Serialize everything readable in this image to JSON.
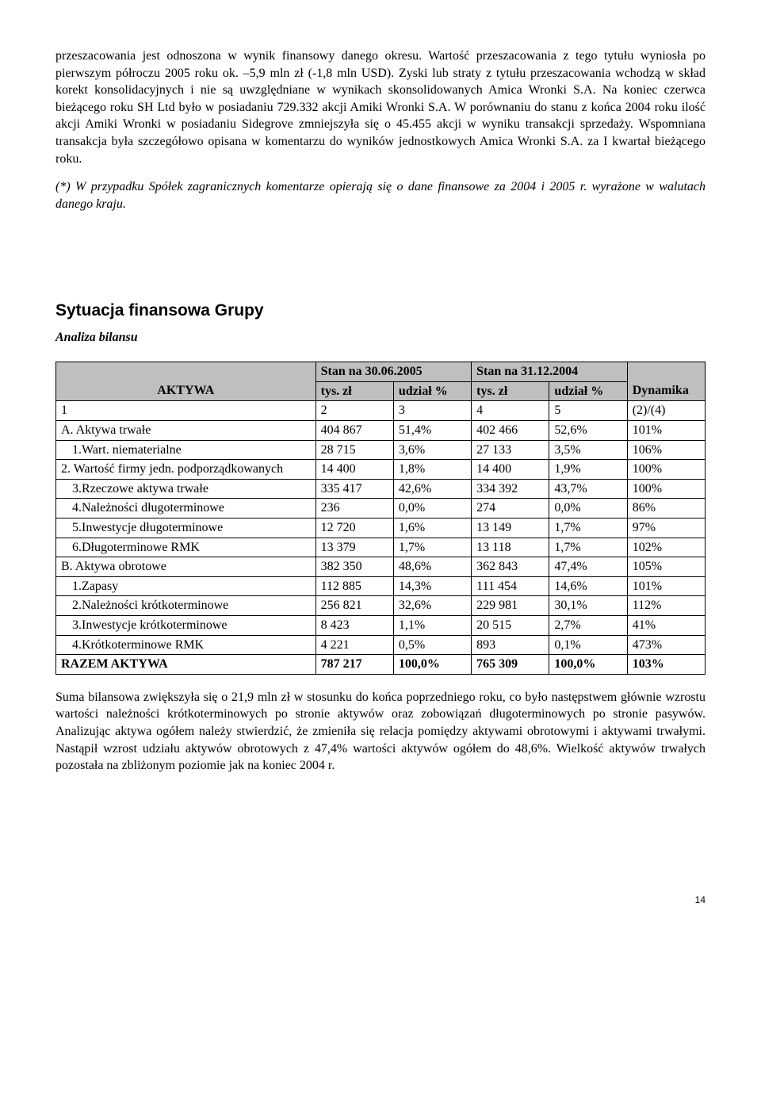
{
  "paragraphs": {
    "p1": "przeszacowania jest odnoszona w wynik finansowy danego okresu. Wartość przeszacowania z tego tytułu wyniosła po pierwszym półroczu 2005 roku ok. –5,9 mln zł (-1,8 mln USD). Zyski lub straty z tytułu przeszacowania wchodzą w skład korekt konsolidacyjnych i nie są uwzględniane w wynikach skonsolidowanych Amica Wronki S.A. Na koniec czerwca bieżącego roku SH Ltd było w posiadaniu 729.332 akcji Amiki Wronki S.A. W porównaniu do stanu z końca 2004 roku ilość akcji Amiki Wronki w posiadaniu Sidegrove zmniejszyła się o 45.455 akcji w wyniku transakcji sprzedaży. Wspomniana transakcja była szczegółowo opisana w komentarzu do wyników jednostkowych Amica Wronki S.A. za I kwartał bieżącego roku.",
    "p2": "(*) W przypadku Spółek zagranicznych komentarze opierają się o dane finansowe za 2004 i 2005 r. wyrażone w walutach danego kraju.",
    "p3": "Suma bilansowa zwiększyła się o  21,9 mln zł w stosunku do końca poprzedniego roku, co było następstwem głównie wzrostu wartości należności krótkoterminowych po stronie aktywów oraz zobowiązań długoterminowych po stronie pasywów. Analizując aktywa ogółem należy stwierdzić, że zmieniła się relacja pomiędzy aktywami obrotowymi i aktywami trwałymi. Nastąpił wzrost udziału aktywów obrotowych z 47,4% wartości aktywów ogółem do 48,6%. Wielkość aktywów trwałych pozostała na zbliżonym poziomie jak na koniec 2004 r."
  },
  "section_title": "Sytuacja finansowa Grupy",
  "subsection_title": "Analiza bilansu",
  "table": {
    "header_top": {
      "stan1": "Stan na 30.06.2005",
      "stan2": "Stan na 31.12.2004"
    },
    "header_cols": {
      "aktywa": "AKTYWA",
      "tys1": "tys. zł",
      "udz1": "udział %",
      "tys2": "tys. zł",
      "udz2": "udział %",
      "dyn": "Dynamika"
    },
    "numrow": {
      "c1": "1",
      "c2": "2",
      "c3": "3",
      "c4": "4",
      "c5": "5",
      "c6": "(2)/(4)"
    },
    "rows": [
      {
        "label": "A. Aktywa trwałe",
        "v1": "404 867",
        "v2": "51,4%",
        "v3": "402 466",
        "v4": "52,6%",
        "v5": "101%",
        "indent": false,
        "bold": false
      },
      {
        "label": "   1.Wart. niematerialne",
        "v1": "28 715",
        "v2": "3,6%",
        "v3": "27 133",
        "v4": "3,5%",
        "v5": "106%",
        "indent": true,
        "bold": false
      },
      {
        "label": "   2. Wartość firmy jedn. podporządkowanych",
        "v1": "14 400",
        "v2": "1,8%",
        "v3": "14 400",
        "v4": "1,9%",
        "v5": "100%",
        "indent": false,
        "bold": false
      },
      {
        "label": "   3.Rzeczowe aktywa trwałe",
        "v1": "335 417",
        "v2": "42,6%",
        "v3": "334 392",
        "v4": "43,7%",
        "v5": "100%",
        "indent": true,
        "bold": false
      },
      {
        "label": "   4.Należności długoterminowe",
        "v1": "236",
        "v2": "0,0%",
        "v3": "274",
        "v4": "0,0%",
        "v5": "86%",
        "indent": true,
        "bold": false
      },
      {
        "label": "   5.Inwestycje długoterminowe",
        "v1": "12 720",
        "v2": "1,6%",
        "v3": "13 149",
        "v4": "1,7%",
        "v5": "97%",
        "indent": true,
        "bold": false
      },
      {
        "label": "   6.Długoterminowe RMK",
        "v1": "13 379",
        "v2": "1,7%",
        "v3": "13 118",
        "v4": "1,7%",
        "v5": "102%",
        "indent": true,
        "bold": false
      },
      {
        "label": "B. Aktywa obrotowe",
        "v1": "382 350",
        "v2": "48,6%",
        "v3": "362 843",
        "v4": "47,4%",
        "v5": "105%",
        "indent": false,
        "bold": false
      },
      {
        "label": "   1.Zapasy",
        "v1": "112 885",
        "v2": "14,3%",
        "v3": "111 454",
        "v4": "14,6%",
        "v5": "101%",
        "indent": true,
        "bold": false
      },
      {
        "label": "   2.Należności krótkoterminowe",
        "v1": "256 821",
        "v2": "32,6%",
        "v3": "229 981",
        "v4": "30,1%",
        "v5": "112%",
        "indent": true,
        "bold": false
      },
      {
        "label": "   3.Inwestycje krótkoterminowe",
        "v1": "8 423",
        "v2": "1,1%",
        "v3": "20 515",
        "v4": "2,7%",
        "v5": "41%",
        "indent": true,
        "bold": false
      },
      {
        "label": "   4.Krótkoterminowe RMK",
        "v1": "4 221",
        "v2": "0,5%",
        "v3": "893",
        "v4": "0,1%",
        "v5": "473%",
        "indent": true,
        "bold": false
      },
      {
        "label": "RAZEM AKTYWA",
        "v1": "787 217",
        "v2": "100,0%",
        "v3": "765 309",
        "v4": "100,0%",
        "v5": "103%",
        "indent": false,
        "bold": true
      }
    ],
    "col_widths": [
      "40%",
      "12%",
      "12%",
      "12%",
      "12%",
      "12%"
    ],
    "header_bg": "#bfbfbf",
    "border_color": "#000000"
  },
  "page_number": "14"
}
